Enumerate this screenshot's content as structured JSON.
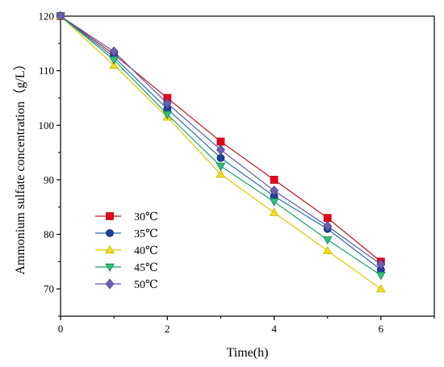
{
  "chart_data": {
    "type": "line",
    "title": "",
    "xlabel": "Time(h)",
    "ylabel": "Ammonium sulfate concentration（g/L）",
    "xlim": [
      0,
      7
    ],
    "ylim": [
      65,
      120
    ],
    "xticks": [
      0,
      2,
      4,
      6
    ],
    "yticks": [
      70,
      80,
      90,
      100,
      110,
      120
    ],
    "x": [
      0,
      1,
      2,
      3,
      4,
      5,
      6
    ],
    "grid": false,
    "legend_position": "lower-left",
    "series": [
      {
        "name": "30℃",
        "color": "#e8001c",
        "edge": "#b01010",
        "line": "#c0141e",
        "marker": "square",
        "values": [
          120,
          113,
          105,
          97,
          90,
          83,
          75
        ]
      },
      {
        "name": "35℃",
        "color": "#1f3f9a",
        "edge": "#102a70",
        "line": "#2a6fb0",
        "marker": "circle",
        "values": [
          120,
          112.5,
          103,
          94,
          87,
          81,
          73.5
        ]
      },
      {
        "name": "40℃",
        "color": "#f0dc1e",
        "edge": "#c8b400",
        "line": "#e0c800",
        "marker": "triangle-up",
        "values": [
          120,
          111,
          101.5,
          91,
          84,
          77,
          70
        ]
      },
      {
        "name": "45℃",
        "color": "#2ec27e",
        "edge": "#188050",
        "line": "#1aa074",
        "marker": "triangle-down",
        "values": [
          120,
          112,
          102,
          92.5,
          86,
          79,
          72.5
        ]
      },
      {
        "name": "50℃",
        "color": "#6a5fb0",
        "edge": "#4a4090",
        "line": "#5a5aa8",
        "marker": "diamond",
        "values": [
          120,
          113.5,
          104,
          95.5,
          88,
          81.5,
          74.5
        ]
      }
    ]
  }
}
